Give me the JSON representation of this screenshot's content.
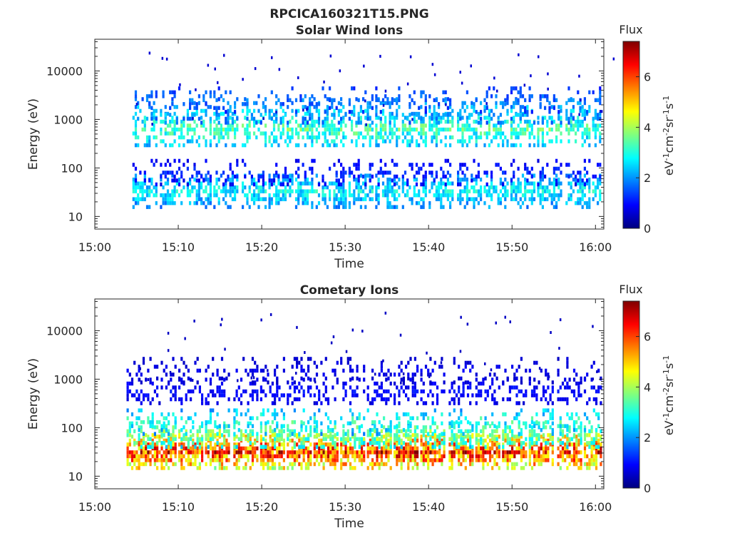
{
  "figure": {
    "title": "RPCICA160321T15.PNG"
  },
  "chart_data": [
    {
      "type": "heatmap",
      "title": "Solar Wind Ions",
      "xlabel": "Time",
      "ylabel": "Energy (eV)",
      "x_range": [
        "15:00",
        "16:01"
      ],
      "x_ticks": [
        "15:00",
        "15:10",
        "15:20",
        "15:30",
        "15:40",
        "15:50",
        "16:00"
      ],
      "y_scale": "log",
      "y_range": [
        5.5,
        45000
      ],
      "y_ticks": [
        "10",
        "100",
        "1000",
        "10000"
      ],
      "grid": false,
      "colorbar": {
        "label": "Flux",
        "unit_label": "eV-1cm-2sr-1s-1",
        "range": [
          0,
          7.4
        ],
        "ticks": [
          "0",
          "2",
          "4",
          "6"
        ],
        "colormap": "jet"
      },
      "bursts_start_minutes": [
        4.5,
        7.8,
        11.0,
        14.2,
        17.6,
        20.8,
        24.0,
        27.2,
        30.4,
        33.6,
        36.8,
        40.0,
        43.4,
        46.6,
        49.8,
        53.0,
        56.4,
        59.6
      ],
      "bands": [
        {
          "energy_center": 33,
          "flux": 2.8,
          "fill": 0.72
        },
        {
          "energy_center": 80,
          "flux": 1.2,
          "fill": 0.28
        },
        {
          "energy_center": 620,
          "flux": 3.4,
          "fill": 0.62
        },
        {
          "energy_center": 1500,
          "flux": 2.4,
          "fill": 0.35
        },
        {
          "energy_center": 2500,
          "flux": 1.8,
          "fill": 0.2
        }
      ]
    },
    {
      "type": "heatmap",
      "title": "Cometary Ions",
      "xlabel": "Time",
      "ylabel": "Energy (eV)",
      "x_range": [
        "15:00",
        "16:01"
      ],
      "x_ticks": [
        "15:00",
        "15:10",
        "15:20",
        "15:30",
        "15:40",
        "15:50",
        "16:00"
      ],
      "y_scale": "log",
      "y_range": [
        5.5,
        45000
      ],
      "y_ticks": [
        "10",
        "100",
        "1000",
        "10000"
      ],
      "grid": false,
      "colorbar": {
        "label": "Flux",
        "unit_label": "eV-1cm-2sr-1s-1",
        "range": [
          0,
          7.4
        ],
        "ticks": [
          "0",
          "2",
          "4",
          "6"
        ],
        "colormap": "jet"
      },
      "bursts_start_minutes": [
        3.8,
        6.8,
        10.0,
        13.2,
        16.6,
        19.8,
        23.0,
        26.2,
        29.4,
        32.6,
        35.8,
        39.0,
        42.4,
        45.6,
        48.8,
        52.0,
        55.4,
        58.6
      ],
      "bands": [
        {
          "energy_center": 31,
          "flux": 6.3,
          "fill": 0.9
        },
        {
          "energy_center": 70,
          "flux": 3.9,
          "fill": 0.55
        },
        {
          "energy_center": 130,
          "flux": 3.2,
          "fill": 0.3
        },
        {
          "energy_center": 560,
          "flux": 1.0,
          "fill": 0.4
        },
        {
          "energy_center": 1500,
          "flux": 0.8,
          "fill": 0.25
        }
      ]
    }
  ]
}
